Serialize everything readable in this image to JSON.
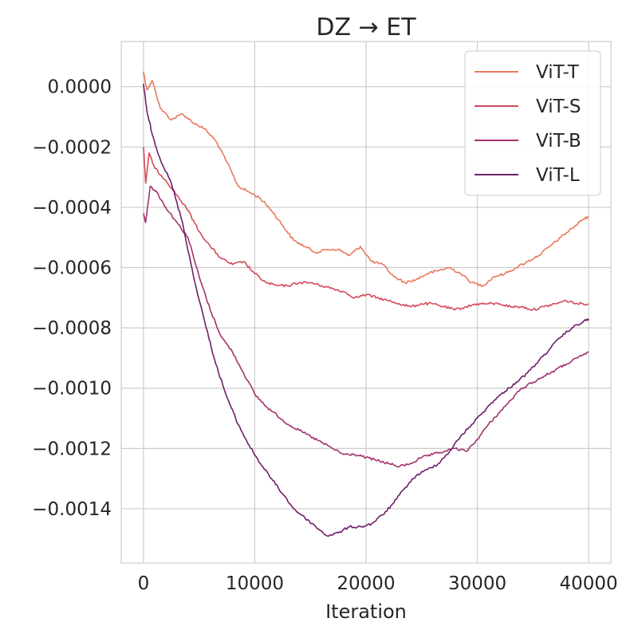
{
  "chart_data": {
    "type": "line",
    "title": "DZ → ET",
    "xlabel": "Iteration",
    "ylabel": "",
    "xlim": [
      -2000,
      42000
    ],
    "ylim": [
      -0.00158,
      0.00015
    ],
    "x_ticks": [
      0,
      10000,
      20000,
      30000,
      40000
    ],
    "x_tick_labels": [
      "0",
      "10000",
      "20000",
      "30000",
      "40000"
    ],
    "y_ticks": [
      0,
      -0.0002,
      -0.0004,
      -0.0006,
      -0.0008,
      -0.001,
      -0.0012,
      -0.0014
    ],
    "y_tick_labels": [
      "0.0000",
      "−0.0002",
      "−0.0004",
      "−0.0006",
      "−0.0008",
      "−0.0010",
      "−0.0012",
      "−0.0014"
    ],
    "grid": true,
    "legend_position": "top-right",
    "series": [
      {
        "name": "ViT-T",
        "color": "#e8795b",
        "x": [
          0,
          300,
          800,
          1500,
          2500,
          3500,
          4500,
          5500,
          6500,
          7500,
          8500,
          9500,
          10500,
          11500,
          12500,
          13500,
          14500,
          15500,
          16500,
          17500,
          18500,
          19500,
          20500,
          21500,
          22500,
          23500,
          24500,
          25500,
          26500,
          27500,
          28500,
          29500,
          30500,
          31500,
          32500,
          33500,
          34500,
          35500,
          36500,
          37500,
          38500,
          39500,
          40000
        ],
        "y": [
          5e-05,
          -1e-05,
          2e-05,
          -7e-05,
          -0.00011,
          -9e-05,
          -0.00012,
          -0.00014,
          -0.00018,
          -0.00025,
          -0.00033,
          -0.00035,
          -0.00037,
          -0.00041,
          -0.00046,
          -0.00051,
          -0.00053,
          -0.00055,
          -0.00054,
          -0.00054,
          -0.00056,
          -0.00053,
          -0.00058,
          -0.00059,
          -0.00063,
          -0.00065,
          -0.00064,
          -0.00062,
          -0.00061,
          -0.0006,
          -0.00062,
          -0.00065,
          -0.00066,
          -0.00063,
          -0.00062,
          -0.0006,
          -0.00058,
          -0.00056,
          -0.00053,
          -0.0005,
          -0.00047,
          -0.00044,
          -0.00043
        ]
      },
      {
        "name": "ViT-S",
        "color": "#d54a5a",
        "x": [
          0,
          200,
          500,
          1000,
          2000,
          3000,
          4000,
          5000,
          6000,
          7000,
          8000,
          9000,
          10000,
          11000,
          12000,
          13000,
          14000,
          15000,
          16000,
          17000,
          18000,
          19000,
          20000,
          21000,
          22000,
          23000,
          24000,
          25000,
          26000,
          27000,
          28000,
          29000,
          30000,
          31000,
          32000,
          33000,
          34000,
          35000,
          36000,
          37000,
          38000,
          39000,
          40000
        ],
        "y": [
          -0.0002,
          -0.00032,
          -0.00022,
          -0.00027,
          -0.00031,
          -0.00036,
          -0.00041,
          -0.00048,
          -0.00053,
          -0.00057,
          -0.00059,
          -0.00058,
          -0.00062,
          -0.00065,
          -0.00066,
          -0.00066,
          -0.00065,
          -0.00065,
          -0.00066,
          -0.00067,
          -0.00068,
          -0.0007,
          -0.00069,
          -0.0007,
          -0.00071,
          -0.00072,
          -0.00073,
          -0.00072,
          -0.00072,
          -0.00073,
          -0.00074,
          -0.00073,
          -0.00072,
          -0.00072,
          -0.00072,
          -0.00073,
          -0.00073,
          -0.00074,
          -0.00073,
          -0.00072,
          -0.00071,
          -0.00072,
          -0.00072
        ]
      },
      {
        "name": "ViT-B",
        "color": "#a3326e",
        "x": [
          0,
          200,
          600,
          1200,
          2000,
          3000,
          4000,
          5000,
          6000,
          7000,
          8000,
          9000,
          10000,
          11000,
          12000,
          13000,
          14000,
          15000,
          16000,
          17000,
          18000,
          19000,
          20000,
          21000,
          22000,
          23000,
          24000,
          25000,
          26000,
          27000,
          28000,
          29000,
          30000,
          31000,
          32000,
          33000,
          34000,
          35000,
          36000,
          37000,
          38000,
          39000,
          40000
        ],
        "y": [
          -0.00042,
          -0.00045,
          -0.00033,
          -0.00035,
          -0.0004,
          -0.00045,
          -0.0005,
          -0.00063,
          -0.00074,
          -0.00083,
          -0.00088,
          -0.00095,
          -0.00102,
          -0.00106,
          -0.00109,
          -0.00112,
          -0.00114,
          -0.00116,
          -0.00118,
          -0.0012,
          -0.00122,
          -0.00122,
          -0.00123,
          -0.00124,
          -0.00125,
          -0.00126,
          -0.00125,
          -0.00123,
          -0.00122,
          -0.00121,
          -0.0012,
          -0.00121,
          -0.00117,
          -0.00112,
          -0.00108,
          -0.00104,
          -0.001,
          -0.00098,
          -0.00096,
          -0.00094,
          -0.00092,
          -0.0009,
          -0.00088
        ]
      },
      {
        "name": "ViT-L",
        "color": "#6e1f68",
        "x": [
          0,
          300,
          800,
          1500,
          2500,
          3500,
          4500,
          5500,
          6500,
          7500,
          8500,
          9500,
          10500,
          11500,
          12500,
          13500,
          14500,
          15500,
          16500,
          17500,
          18500,
          19500,
          20500,
          21500,
          22500,
          23500,
          24500,
          25500,
          26500,
          27500,
          28500,
          29500,
          30500,
          31500,
          32500,
          33500,
          34500,
          35500,
          36500,
          37500,
          38500,
          39500,
          40000
        ],
        "y": [
          1e-05,
          -8e-05,
          -0.00016,
          -0.00024,
          -0.00032,
          -0.00045,
          -0.00063,
          -0.00078,
          -0.00092,
          -0.00103,
          -0.00112,
          -0.00119,
          -0.00125,
          -0.0013,
          -0.00135,
          -0.0014,
          -0.00143,
          -0.00146,
          -0.00149,
          -0.00148,
          -0.00146,
          -0.00146,
          -0.00145,
          -0.00142,
          -0.00138,
          -0.00133,
          -0.00129,
          -0.00127,
          -0.00125,
          -0.00121,
          -0.00116,
          -0.00112,
          -0.00108,
          -0.00104,
          -0.00101,
          -0.00098,
          -0.00095,
          -0.00091,
          -0.00087,
          -0.00083,
          -0.0008,
          -0.00078,
          -0.00077
        ]
      }
    ]
  }
}
